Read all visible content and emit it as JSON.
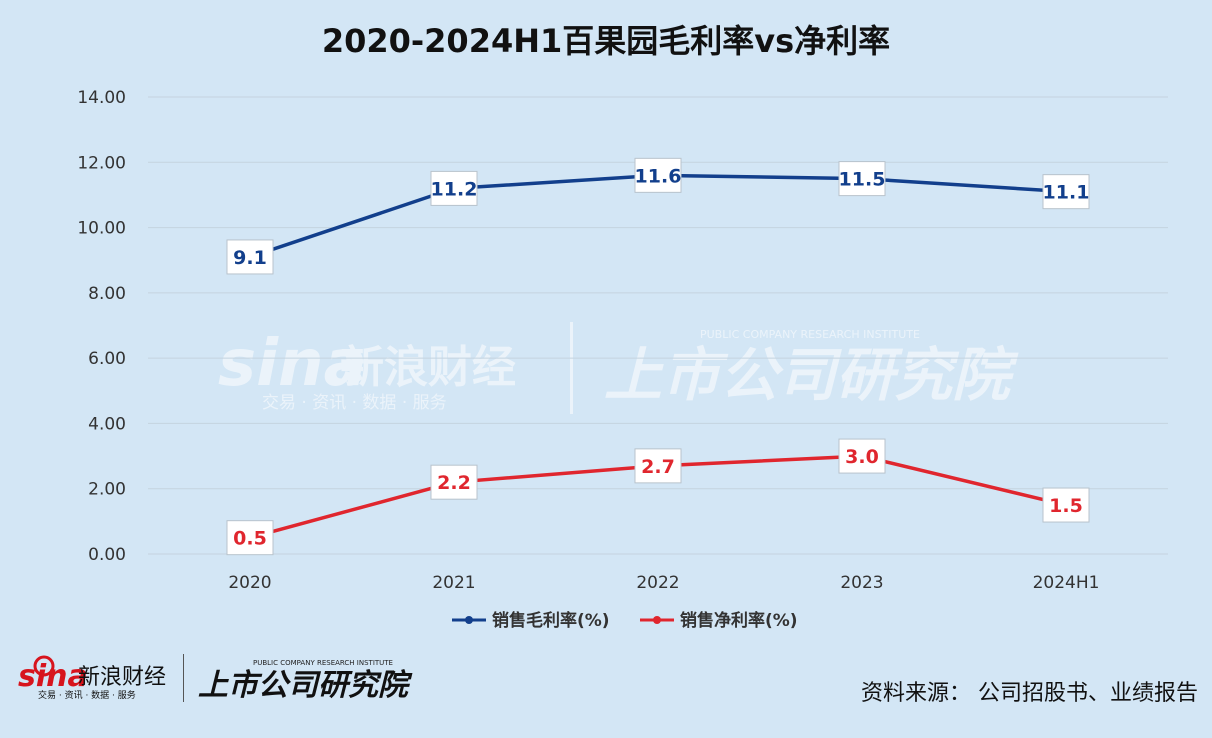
{
  "chart_data": {
    "type": "line",
    "title": "2020-2024H1百果园毛利率vs净利率",
    "categories": [
      "2020",
      "2021",
      "2022",
      "2023",
      "2024H1"
    ],
    "series": [
      {
        "name": "销售毛利率(%)",
        "values": [
          9.1,
          11.2,
          11.6,
          11.5,
          11.1
        ],
        "color": "#123f8c",
        "label_color": "#123f8c"
      },
      {
        "name": "销售净利率(%)",
        "values": [
          0.5,
          2.2,
          2.7,
          3.0,
          1.5
        ],
        "color": "#e0262e",
        "label_color": "#e0262e"
      }
    ],
    "yticks": [
      "0.00",
      "2.00",
      "4.00",
      "6.00",
      "8.00",
      "10.00",
      "12.00",
      "14.00"
    ],
    "ylim": [
      0,
      14
    ],
    "grid": true,
    "legend_position": "bottom"
  },
  "watermark": {
    "brand_latin": "sina",
    "brand_cn": "新浪财经",
    "brand_sub": "交易 · 资讯 · 数据 · 服务",
    "institute_cn": "上市公司研究院",
    "institute_en": "PUBLIC COMPANY RESEARCH INSTITUTE"
  },
  "footer": {
    "source": "资料来源： 公司招股书、业绩报告"
  }
}
